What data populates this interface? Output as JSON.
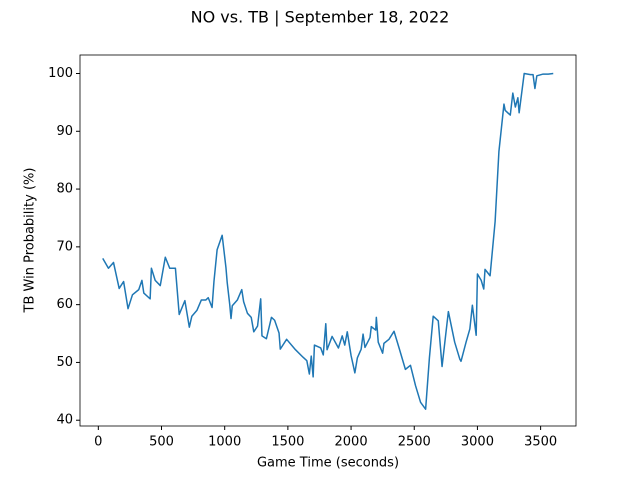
{
  "chart_data": {
    "type": "line",
    "title": "NO vs. TB | September 18, 2022",
    "x_label": "Game Time (seconds)",
    "y_label": "TB Win Probability (%)",
    "xlim": [
      -145,
      3780
    ],
    "ylim": [
      39,
      103.2
    ],
    "xticks": [
      0,
      500,
      1000,
      1500,
      2000,
      2500,
      3000,
      3500
    ],
    "yticks": [
      40,
      50,
      60,
      70,
      80,
      90,
      100
    ],
    "series": [
      {
        "color": "#1f77b4",
        "x": [
          35,
          80,
          120,
          165,
          200,
          235,
          270,
          320,
          345,
          360,
          410,
          420,
          450,
          490,
          530,
          565,
          610,
          640,
          685,
          720,
          740,
          780,
          815,
          850,
          870,
          900,
          915,
          940,
          980,
          1010,
          1020,
          1040,
          1050,
          1060,
          1100,
          1135,
          1150,
          1180,
          1210,
          1230,
          1260,
          1285,
          1295,
          1330,
          1370,
          1395,
          1430,
          1440,
          1490,
          1560,
          1620,
          1650,
          1670,
          1685,
          1700,
          1710,
          1760,
          1780,
          1800,
          1810,
          1850,
          1900,
          1930,
          1950,
          1970,
          2000,
          2030,
          2050,
          2080,
          2095,
          2110,
          2150,
          2160,
          2195,
          2200,
          2215,
          2250,
          2260,
          2300,
          2340,
          2380,
          2430,
          2470,
          2510,
          2550,
          2590,
          2620,
          2650,
          2690,
          2720,
          2760,
          2770,
          2820,
          2860,
          2870,
          2910,
          2940,
          2960,
          2990,
          3000,
          3030,
          3050,
          3060,
          3100,
          3140,
          3170,
          3210,
          3220,
          3260,
          3280,
          3300,
          3320,
          3330,
          3370,
          3420,
          3440,
          3455,
          3470,
          3520,
          3560,
          3600
        ],
        "values": [
          68,
          66.3,
          67.3,
          62.8,
          64,
          59.3,
          61.7,
          62.6,
          64.2,
          62,
          61,
          66.3,
          64.2,
          63.3,
          68.2,
          66.3,
          66.3,
          58.3,
          60.7,
          56.1,
          58,
          59,
          60.8,
          60.8,
          61.2,
          59.5,
          64,
          69.5,
          72,
          66.4,
          63.8,
          60,
          57.6,
          59.8,
          60.8,
          62.6,
          60.5,
          58.5,
          57.8,
          55.3,
          56.3,
          61,
          54.6,
          54.1,
          57.8,
          57.3,
          55.1,
          52.3,
          54,
          52.2,
          50.9,
          50.3,
          48,
          51.1,
          47.5,
          53,
          52.5,
          51.3,
          56.7,
          52.2,
          54.5,
          52.5,
          54.6,
          53,
          55.3,
          51.2,
          48.2,
          50.8,
          52.3,
          54.9,
          52.6,
          54.3,
          56.2,
          55.6,
          57.8,
          53.5,
          51.6,
          53.3,
          54,
          55.4,
          52.5,
          48.8,
          49.5,
          46,
          43.1,
          41.9,
          50.8,
          58,
          57.2,
          49.3,
          56.9,
          58.8,
          53.5,
          50.6,
          50.2,
          53.5,
          55.8,
          59.9,
          54.7,
          65.3,
          64.2,
          62.7,
          66.1,
          65,
          74.4,
          86.5,
          94.7,
          93.6,
          92.8,
          96.6,
          94.2,
          95.8,
          93.2,
          100,
          99.8,
          99.8,
          97.4,
          99.6,
          99.9,
          99.9,
          100
        ]
      }
    ]
  }
}
